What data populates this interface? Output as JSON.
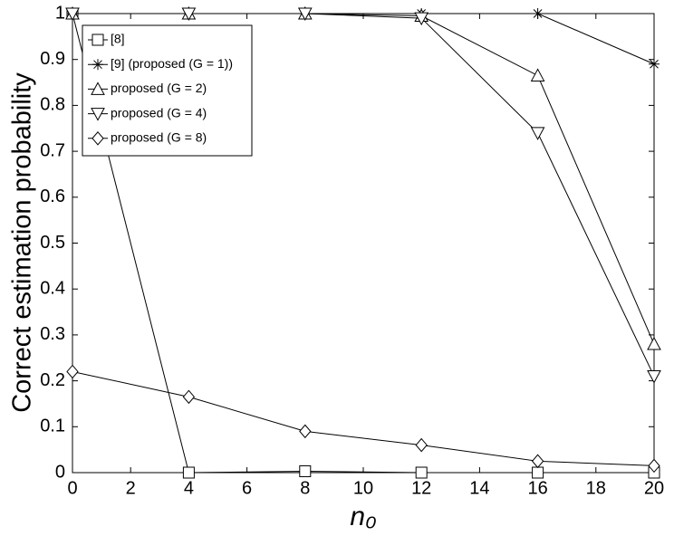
{
  "chart_data": {
    "type": "line",
    "x": [
      0,
      4,
      8,
      12,
      16,
      20
    ],
    "series": [
      {
        "name": "[8]",
        "marker": "square",
        "color": "#000000",
        "values": [
          1,
          0,
          0.003,
          0,
          0,
          0
        ]
      },
      {
        "name": "[9] (proposed (G = 1))",
        "marker": "star",
        "color": "#000000",
        "values": [
          1,
          1,
          1,
          1,
          1,
          0.89
        ]
      },
      {
        "name": "proposed (G = 2)",
        "marker": "triangle-up",
        "color": "#000000",
        "values": [
          1,
          1,
          1,
          0.995,
          0.865,
          0.28
        ]
      },
      {
        "name": "proposed (G = 4)",
        "marker": "triangle-down",
        "color": "#000000",
        "values": [
          1,
          1,
          1,
          0.99,
          0.74,
          0.21
        ]
      },
      {
        "name": "proposed (G = 8)",
        "marker": "diamond",
        "color": "#000000",
        "values": [
          0.22,
          0.165,
          0.09,
          0.06,
          0.025,
          0.015
        ]
      }
    ],
    "x_label": "n₀",
    "y_label": "Correct estimation probability",
    "xlim": [
      0,
      20
    ],
    "xticks": [
      0,
      2,
      4,
      6,
      8,
      10,
      12,
      14,
      16,
      18,
      20
    ],
    "ylim": [
      0,
      1
    ],
    "yticks": [
      0,
      0.1,
      0.2,
      0.3,
      0.4,
      0.5,
      0.6,
      0.7,
      0.8,
      0.9,
      1
    ],
    "grid": false,
    "legend": "upper left"
  }
}
